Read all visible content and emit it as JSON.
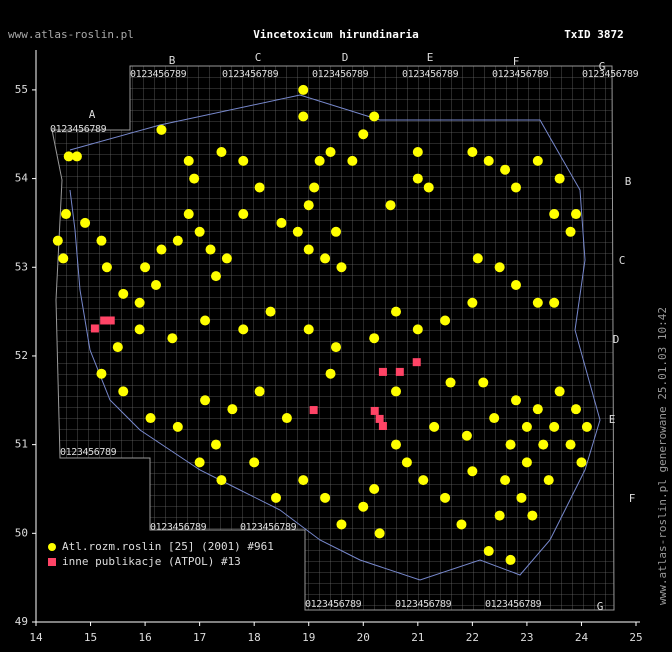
{
  "chart_data": {
    "type": "scatter",
    "title": "Vincetoxicum hirundinaria",
    "txid": "TxID 3872",
    "site": "www.atlas-roslin.pl",
    "side_note": "www.atlas-roslin.pl generowane 25.01.03 10:42",
    "column_letters": [
      "A",
      "B",
      "C",
      "D",
      "E",
      "F",
      "G"
    ],
    "row_letters": [
      "B",
      "C",
      "D",
      "E",
      "F",
      "G"
    ],
    "digits": "0123456789",
    "xlim": [
      14,
      25
    ],
    "ylim": [
      49,
      55.45
    ],
    "xticks": [
      14,
      15,
      16,
      17,
      18,
      19,
      20,
      21,
      22,
      23,
      24,
      25
    ],
    "yticks": [
      49,
      50,
      51,
      52,
      53,
      54,
      55
    ],
    "series": [
      {
        "name": "Atl.rozm.roslin [25] (2001) #961",
        "color": "#ffff00",
        "marker": "circle",
        "x": [
          14.6,
          14.75,
          14.55,
          14.4,
          14.5,
          14.9,
          15.2,
          15.3,
          15.6,
          15.9,
          16.2,
          16.3,
          16.0,
          16.6,
          16.8,
          17.0,
          17.5,
          17.3,
          17.8,
          18.1,
          18.5,
          18.8,
          19.0,
          19.1,
          19.2,
          19.4,
          19.0,
          19.3,
          19.6,
          19.5,
          18.9,
          18.9,
          17.2,
          16.9,
          17.4,
          16.3,
          16.8,
          17.8,
          20.2,
          20.0,
          19.8,
          20.5,
          21.0,
          21.2,
          21.0,
          22.0,
          22.3,
          22.6,
          22.8,
          23.2,
          23.6,
          23.5,
          23.9,
          23.8,
          22.1,
          22.5,
          22.8,
          23.2,
          23.5,
          22.0,
          21.5,
          21.0,
          20.6,
          20.2,
          19.5,
          19.0,
          18.3,
          17.8,
          17.1,
          16.5,
          15.9,
          15.5,
          15.2,
          15.6,
          16.1,
          16.6,
          17.1,
          17.6,
          17.3,
          17.0,
          17.4,
          18.0,
          18.4,
          18.9,
          19.3,
          19.6,
          20.0,
          20.3,
          20.2,
          20.8,
          20.6,
          21.1,
          21.5,
          21.8,
          22.3,
          22.7,
          22.5,
          22.9,
          22.6,
          23.0,
          22.7,
          22.4,
          22.8,
          23.2,
          23.5,
          23.8,
          24.0,
          23.9,
          23.6,
          23.3,
          23.0,
          22.2,
          21.6,
          21.9,
          22.0,
          24.1,
          23.4,
          23.1,
          21.3,
          20.6,
          19.4,
          18.6,
          18.1
        ],
        "values": [
          54.25,
          54.25,
          53.6,
          53.3,
          53.1,
          53.5,
          53.3,
          53.0,
          52.7,
          52.6,
          52.8,
          53.2,
          53.0,
          53.3,
          53.6,
          53.4,
          53.1,
          52.9,
          53.6,
          53.9,
          53.5,
          53.4,
          53.7,
          53.9,
          54.2,
          54.3,
          53.2,
          53.1,
          53.0,
          53.4,
          55.0,
          54.7,
          53.2,
          54.0,
          54.3,
          54.55,
          54.2,
          54.2,
          54.7,
          54.5,
          54.2,
          53.7,
          54.0,
          53.9,
          54.3,
          54.3,
          54.2,
          54.1,
          53.9,
          54.2,
          54.0,
          53.6,
          53.6,
          53.4,
          53.1,
          53.0,
          52.8,
          52.6,
          52.6,
          52.6,
          52.4,
          52.3,
          52.5,
          52.2,
          52.1,
          52.3,
          52.5,
          52.3,
          52.4,
          52.2,
          52.3,
          52.1,
          51.8,
          51.6,
          51.3,
          51.2,
          51.5,
          51.4,
          51.0,
          50.8,
          50.6,
          50.8,
          50.4,
          50.6,
          50.4,
          50.1,
          50.3,
          50.0,
          50.5,
          50.8,
          51.0,
          50.6,
          50.4,
          50.1,
          49.8,
          49.7,
          50.2,
          50.4,
          50.6,
          50.8,
          51.0,
          51.3,
          51.5,
          51.4,
          51.2,
          51.0,
          50.8,
          51.4,
          51.6,
          51.0,
          51.2,
          51.7,
          51.7,
          51.1,
          50.7,
          51.2,
          50.6,
          50.2,
          51.2,
          51.6,
          51.8,
          51.3,
          51.6
        ]
      },
      {
        "name": "inne publikacje (ATPOL) #13",
        "color": "#ff4466",
        "marker": "square",
        "x": [
          15.08,
          15.25,
          15.37,
          19.09,
          20.21,
          20.36,
          20.36,
          20.67,
          20.98,
          20.3
        ],
        "values": [
          52.31,
          52.4,
          52.4,
          51.39,
          51.38,
          51.21,
          51.82,
          51.82,
          51.93,
          51.29
        ]
      }
    ]
  }
}
